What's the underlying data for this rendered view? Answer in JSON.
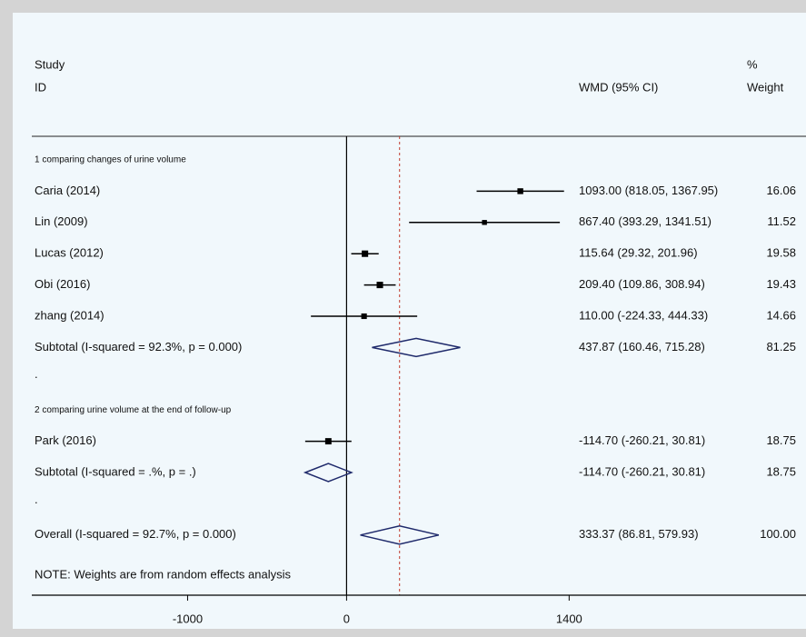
{
  "chart_data": {
    "type": "forest",
    "header": {
      "study": "Study",
      "id": "ID",
      "effect": "WMD (95% CI)",
      "weight_top": "%",
      "weight": "Weight"
    },
    "groups": [
      {
        "label": "1 comparing changes of urine volume",
        "studies": [
          {
            "name": "Caria (2014)",
            "estimate": 1093.0,
            "ci": [
              818.05,
              1367.95
            ],
            "ci_label": "1093.00 (818.05, 1367.95)",
            "weight": 16.06
          },
          {
            "name": "Lin (2009)",
            "estimate": 867.4,
            "ci": [
              393.29,
              1341.51
            ],
            "ci_label": "867.40 (393.29, 1341.51)",
            "weight": 11.52
          },
          {
            "name": "Lucas (2012)",
            "estimate": 115.64,
            "ci": [
              29.32,
              201.96
            ],
            "ci_label": "115.64 (29.32, 201.96)",
            "weight": 19.58
          },
          {
            "name": "Obi (2016)",
            "estimate": 209.4,
            "ci": [
              109.86,
              308.94
            ],
            "ci_label": "209.40 (109.86, 308.94)",
            "weight": 19.43
          },
          {
            "name": "zhang (2014)",
            "estimate": 110.0,
            "ci": [
              -224.33,
              444.33
            ],
            "ci_label": "110.00 (-224.33, 444.33)",
            "weight": 14.66
          }
        ],
        "subtotal": {
          "name": "Subtotal  (I-squared = 92.3%, p = 0.000)",
          "estimate": 437.87,
          "ci": [
            160.46,
            715.28
          ],
          "ci_label": "437.87 (160.46, 715.28)",
          "weight": 81.25
        },
        "separator": "."
      },
      {
        "label": "2 comparing  urine volume at the end of follow-up",
        "studies": [
          {
            "name": "Park (2016)",
            "estimate": -114.7,
            "ci": [
              -260.21,
              30.81
            ],
            "ci_label": "-114.70 (-260.21, 30.81)",
            "weight": 18.75
          }
        ],
        "subtotal": {
          "name": "Subtotal  (I-squared = .%, p = .)",
          "estimate": -114.7,
          "ci": [
            -260.21,
            30.81
          ],
          "ci_label": "-114.70 (-260.21, 30.81)",
          "weight": 18.75
        },
        "separator": "."
      }
    ],
    "overall": {
      "name": "Overall  (I-squared = 92.7%, p = 0.000)",
      "estimate": 333.37,
      "ci": [
        86.81,
        579.93
      ],
      "ci_label": "333.37 (86.81, 579.93)",
      "weight": 100,
      "weight_label": "100.00"
    },
    "note": "NOTE: Weights are from random effects analysis",
    "xlim": [
      -1980,
      2890
    ],
    "xticks": [
      -1000,
      0,
      1400
    ]
  }
}
